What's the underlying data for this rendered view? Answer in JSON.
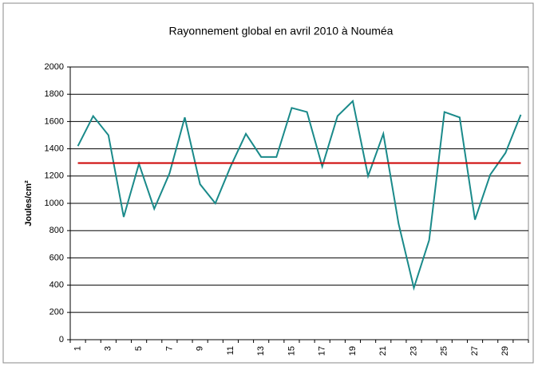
{
  "chart_data": {
    "type": "line",
    "title": "Rayonnement global en avril 2010 à Nouméa",
    "y_label": "Joules/cm²",
    "categories": [
      "1",
      null,
      "3",
      null,
      "5",
      null,
      "7",
      null,
      "9",
      null,
      "11",
      null,
      "13",
      null,
      "15",
      null,
      "17",
      null,
      "19",
      null,
      "21",
      null,
      "23",
      null,
      "25",
      null,
      "27",
      null,
      "29",
      null
    ],
    "series": [
      {
        "color": "#1a8a8a",
        "values": [
          1420,
          1640,
          1500,
          900,
          1290,
          960,
          1220,
          1630,
          1140,
          1000,
          1270,
          1510,
          1340,
          1340,
          1700,
          1670,
          1270,
          1640,
          1750,
          1200,
          1510,
          850,
          380,
          730,
          1670,
          1630,
          880,
          1210,
          1370,
          1650
        ]
      },
      {
        "color": "#cc0000",
        "values": [
          1295,
          1295,
          1295,
          1295,
          1295,
          1295,
          1295,
          1295,
          1295,
          1295,
          1295,
          1295,
          1295,
          1295,
          1295,
          1295,
          1295,
          1295,
          1295,
          1295,
          1295,
          1295,
          1295,
          1295,
          1295,
          1295,
          1295,
          1295,
          1295,
          1295
        ]
      }
    ],
    "ylim": [
      0,
      2000
    ],
    "yticks": [
      0,
      200,
      400,
      600,
      800,
      1000,
      1200,
      1400,
      1600,
      1800,
      2000
    ],
    "grid": true
  }
}
